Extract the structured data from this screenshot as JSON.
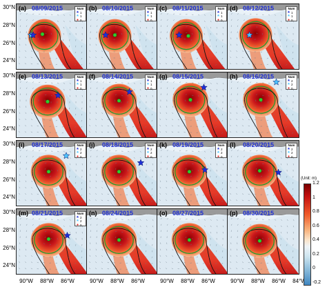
{
  "axes": {
    "lat_labels": [
      "30°N",
      "28°N",
      "26°N",
      "24°N"
    ],
    "lon_labels": [
      "90°W",
      "88°W",
      "86°W",
      "84°W"
    ]
  },
  "legend": {
    "title": "Num",
    "entries": [
      {
        "symbol": "star",
        "count": "1"
      },
      {
        "symbol": "star",
        "count": "1"
      },
      {
        "symbol": "dot",
        "count": "0"
      }
    ],
    "entries_alt": [
      {
        "symbol": "star",
        "count": "2"
      },
      {
        "symbol": "star",
        "count": "2"
      },
      {
        "symbol": "dot",
        "count": "0"
      }
    ]
  },
  "colorbar": {
    "title": "(Unit: m)",
    "ticks": [
      "1.2",
      "1",
      "0.8",
      "0.6",
      "0.4",
      "0.2",
      "0",
      "-0.2"
    ],
    "min": -0.2,
    "max": 1.2
  },
  "panels": [
    {
      "letter": "(a)",
      "date": "08/09/2015",
      "legend": "one",
      "star": {
        "lon": -89.6,
        "lat": 27.0
      },
      "star2": {
        "lon": -89.4,
        "lat": 27.0
      },
      "green": {
        "lon": -88.5,
        "lat": 27.1
      },
      "eddy": {
        "lon": -88.3,
        "lat": 26.9,
        "rx": 0.28,
        "ry": 0.3
      }
    },
    {
      "letter": "(b)",
      "date": "08/10/2015",
      "legend": "one",
      "star": {
        "lon": -89.2,
        "lat": 27.0
      },
      "star2": null,
      "green": {
        "lon": -88.3,
        "lat": 27.0
      },
      "eddy": {
        "lon": -88.3,
        "lat": 26.9,
        "rx": 0.28,
        "ry": 0.3
      }
    },
    {
      "letter": "(c)",
      "date": "08/11/2015",
      "legend": "one",
      "star": {
        "lon": -88.9,
        "lat": 27.0
      },
      "star2": null,
      "green": {
        "lon": -88.0,
        "lat": 26.9
      },
      "eddy": {
        "lon": -88.2,
        "lat": 26.9,
        "rx": 0.28,
        "ry": 0.3
      }
    },
    {
      "letter": "(d)",
      "date": "08/12/2015",
      "legend": "one",
      "star": {
        "lon": -88.9,
        "lat": 27.0
      },
      "star2": null,
      "green": null,
      "eddy": {
        "lon": -88.3,
        "lat": 27.0,
        "rx": 0.28,
        "ry": 0.3
      }
    },
    {
      "letter": "(e)",
      "date": "08/13/2015",
      "legend": "one",
      "star": {
        "lon": -87.0,
        "lat": 27.9
      },
      "star2": null,
      "green": {
        "lon": -88.0,
        "lat": 27.2
      },
      "eddy": {
        "lon": -88.0,
        "lat": 27.2,
        "rx": 0.3,
        "ry": 0.3
      }
    },
    {
      "letter": "(f)",
      "date": "08/14/2015",
      "legend": "one",
      "star": {
        "lon": -86.9,
        "lat": 28.3
      },
      "star2": null,
      "green": {
        "lon": -87.9,
        "lat": 27.3
      },
      "eddy": {
        "lon": -87.9,
        "lat": 27.3,
        "rx": 0.3,
        "ry": 0.3
      }
    },
    {
      "letter": "(g)",
      "date": "08/15/2015",
      "legend": "none",
      "star": {
        "lon": -86.5,
        "lat": 28.8
      },
      "star2": null,
      "green": {
        "lon": -87.8,
        "lat": 27.4
      },
      "eddy": {
        "lon": -87.8,
        "lat": 27.4,
        "rx": 0.3,
        "ry": 0.3
      }
    },
    {
      "letter": "(h)",
      "date": "08/16/2015",
      "legend": "two",
      "star": {
        "lon": -86.3,
        "lat": 29.4
      },
      "star2": null,
      "green": {
        "lon": -87.8,
        "lat": 27.4
      },
      "eddy": {
        "lon": -87.8,
        "lat": 27.4,
        "rx": 0.3,
        "ry": 0.3
      }
    },
    {
      "letter": "(i)",
      "date": "08/17/2015",
      "legend": "two",
      "star": {
        "lon": -86.2,
        "lat": 28.8
      },
      "star2": null,
      "green": {
        "lon": -87.9,
        "lat": 27.0
      },
      "eddy": {
        "lon": -87.9,
        "lat": 27.0,
        "rx": 0.3,
        "ry": 0.3
      }
    },
    {
      "letter": "(j)",
      "date": "08/18/2015",
      "legend": "two",
      "star": {
        "lon": -85.8,
        "lat": 28.0
      },
      "star2": null,
      "green": {
        "lon": -87.9,
        "lat": 27.0
      },
      "eddy": {
        "lon": -87.9,
        "lat": 27.0,
        "rx": 0.3,
        "ry": 0.3
      }
    },
    {
      "letter": "(k)",
      "date": "08/19/2015",
      "legend": "two",
      "star": {
        "lon": -86.4,
        "lat": 27.2
      },
      "star2": null,
      "green": {
        "lon": -87.9,
        "lat": 27.0
      },
      "eddy": {
        "lon": -87.9,
        "lat": 27.0,
        "rx": 0.3,
        "ry": 0.3
      }
    },
    {
      "letter": "(l)",
      "date": "08/20/2015",
      "legend": "two",
      "star": {
        "lon": -86.1,
        "lat": 26.9
      },
      "star2": null,
      "green": {
        "lon": -87.9,
        "lat": 27.1
      },
      "eddy": {
        "lon": -87.9,
        "lat": 27.0,
        "rx": 0.3,
        "ry": 0.3
      }
    },
    {
      "letter": "(m)",
      "date": "08/21/2015",
      "legend": "two",
      "star": {
        "lon": -86.1,
        "lat": 27.5
      },
      "star2": null,
      "green": {
        "lon": -87.9,
        "lat": 27.1
      },
      "eddy": {
        "lon": -87.9,
        "lat": 27.0,
        "rx": 0.3,
        "ry": 0.3
      }
    },
    {
      "letter": "(n)",
      "date": "08/24/2015",
      "legend": "none",
      "star": null,
      "star2": null,
      "green": {
        "lon": -87.9,
        "lat": 27.0
      },
      "eddy": {
        "lon": -87.9,
        "lat": 27.0,
        "rx": 0.3,
        "ry": 0.3
      }
    },
    {
      "letter": "(o)",
      "date": "08/27/2015",
      "legend": "none",
      "star": null,
      "star2": null,
      "green": {
        "lon": -87.9,
        "lat": 27.0
      },
      "eddy": {
        "lon": -87.9,
        "lat": 27.0,
        "rx": 0.3,
        "ry": 0.3
      }
    },
    {
      "letter": "(p)",
      "date": "08/30/2015",
      "legend": "none",
      "star": null,
      "star2": null,
      "green": {
        "lon": -87.9,
        "lat": 26.9
      },
      "eddy": {
        "lon": -87.9,
        "lat": 26.9,
        "rx": 0.3,
        "ry": 0.3
      }
    }
  ],
  "colors": {
    "star_dark": "#1f2fd6",
    "star_light": "#4cc3ff",
    "green_dot": "#2ecc2e",
    "contour_black": "#111111",
    "contour_green": "#1f9d2c",
    "land": "#9a9a9a"
  }
}
